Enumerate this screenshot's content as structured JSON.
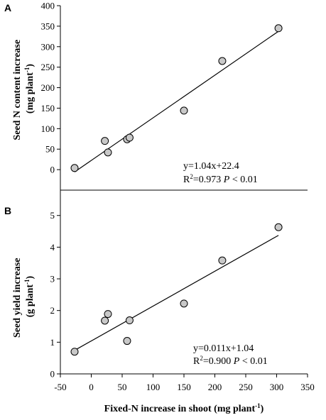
{
  "chart_data": [
    {
      "type": "scatter",
      "panel": "A",
      "ylabel_line1": "Seed N content increase",
      "ylabel_line2_main": "(mg plant",
      "ylabel_line2_sup": "-1",
      "ylabel_line2_end": ")",
      "xlim": [
        -50,
        350
      ],
      "ylim": [
        -50,
        400
      ],
      "yticks": [
        0,
        50,
        100,
        150,
        200,
        250,
        300,
        350,
        400
      ],
      "ytick_labels": [
        "0",
        "50",
        "100",
        "150",
        "200",
        "250",
        "300",
        "350",
        "400"
      ],
      "points": [
        {
          "x": -27,
          "y": 4
        },
        {
          "x": 22,
          "y": 70
        },
        {
          "x": 27,
          "y": 42
        },
        {
          "x": 58,
          "y": 74
        },
        {
          "x": 62,
          "y": 78
        },
        {
          "x": 150,
          "y": 144
        },
        {
          "x": 212,
          "y": 265
        },
        {
          "x": 303,
          "y": 345
        }
      ],
      "fit": {
        "slope": 1.04,
        "intercept": 22.4,
        "x_start": -27,
        "x_end": 303
      },
      "equation": "y=1.04x+22.4",
      "r2_prefix": "R",
      "r2_sup": "2",
      "r2_value": "=0.973 ",
      "p_symbol": "P",
      "p_text": " < 0.01"
    },
    {
      "type": "scatter",
      "panel": "B",
      "ylabel_line1": "Seed yield increase",
      "ylabel_line2_main": "(g plant",
      "ylabel_line2_sup": "-1",
      "ylabel_line2_end": ")",
      "xlim": [
        -50,
        350
      ],
      "ylim": [
        0,
        5.8
      ],
      "yticks": [
        0,
        1,
        2,
        3,
        4,
        5
      ],
      "ytick_labels": [
        "0",
        "1",
        "2",
        "3",
        "4",
        "5"
      ],
      "xticks": [
        -50,
        0,
        50,
        100,
        150,
        200,
        250,
        300,
        350
      ],
      "xtick_labels": [
        "-50",
        "0",
        "50",
        "100",
        "150",
        "200",
        "250",
        "300",
        "350"
      ],
      "points": [
        {
          "x": -27,
          "y": 0.7
        },
        {
          "x": 22,
          "y": 1.68
        },
        {
          "x": 27,
          "y": 1.89
        },
        {
          "x": 58,
          "y": 1.04
        },
        {
          "x": 62,
          "y": 1.69
        },
        {
          "x": 150,
          "y": 2.22
        },
        {
          "x": 212,
          "y": 3.58
        },
        {
          "x": 303,
          "y": 4.63
        }
      ],
      "fit": {
        "slope": 0.011,
        "intercept": 1.04,
        "x_start": -27,
        "x_end": 303
      },
      "equation": "y=0.011x+1.04",
      "r2_prefix": "R",
      "r2_sup": "2",
      "r2_value": "=0.900 ",
      "p_symbol": "P",
      "p_text": " < 0.01"
    }
  ],
  "xlabel_main": "Fixed-N increase in shoot (mg plant",
  "xlabel_sup": "-1",
  "xlabel_end": ")"
}
